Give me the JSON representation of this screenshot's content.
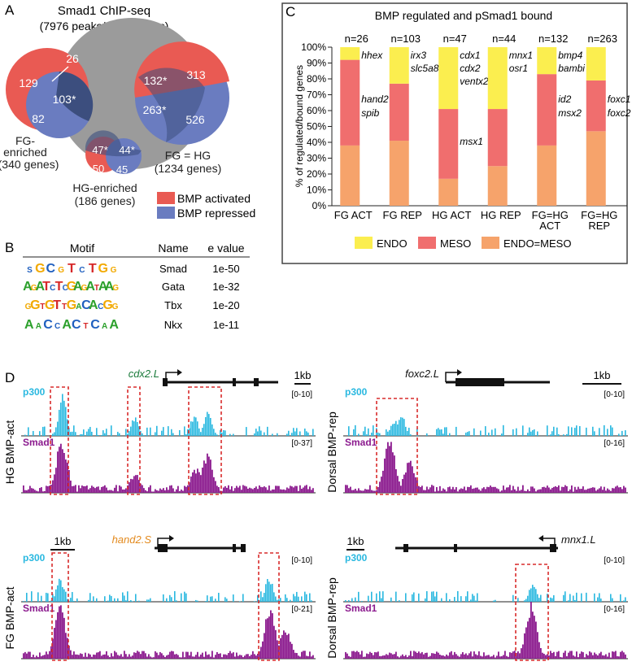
{
  "panelA": {
    "letter": "A",
    "title1": "Smad1 ChIP-seq",
    "title2": "(7976 peaks/5252 genes)",
    "fg": {
      "left": "129",
      "overlap": "103*",
      "bottom": "82",
      "label1": "FG-",
      "label2": "enriched",
      "label3": "(340 genes)",
      "line_label": "26"
    },
    "fghg": {
      "top_overlap": "132*",
      "top": "313",
      "mid_overlap": "263*",
      "bottom": "526",
      "label1": "FG = HG",
      "label2": "(1234 genes)"
    },
    "hg": {
      "tl": "47*",
      "tr": "44*",
      "bl": "50",
      "br": "45",
      "label1": "HG-enriched",
      "label2": "(186 genes)"
    },
    "legend": [
      {
        "label": "BMP activated",
        "color": "#e95a53"
      },
      {
        "label": "BMP repressed",
        "color": "#6a7cc0"
      }
    ],
    "colors": {
      "activated": "#e95a53",
      "repressed": "#6a7cc0",
      "overlap": "#3c4e7e",
      "big": "#999999"
    }
  },
  "panelB": {
    "letter": "B",
    "headers": [
      "Motif",
      "Name",
      "e value"
    ],
    "rows": [
      {
        "motif": "SGCGTCTGG",
        "name": "Smad",
        "evalue": "1e-50"
      },
      {
        "motif": "AGATCTCGAGATAAG",
        "name": "Gata",
        "evalue": "1e-32"
      },
      {
        "motif": "GGTGTTGACACGG",
        "name": "Tbx",
        "evalue": "1e-20"
      },
      {
        "motif": "AACCACTCAA",
        "name": "Nkx",
        "evalue": "1e-11"
      }
    ]
  },
  "panelC": {
    "letter": "C",
    "title": "BMP regulated and pSmad1 bound",
    "ylabel": "% of regulated/bound genes",
    "legend": [
      {
        "label": "ENDO",
        "color": "#fbee4f"
      },
      {
        "label": "MESO",
        "color": "#f06e6e"
      },
      {
        "label": "ENDO=MESO",
        "color": "#f6a36b"
      }
    ],
    "genes": [
      {
        "top": "hhex",
        "mid": "hand2 spib"
      },
      {
        "top": "irx3 slc5a8",
        "mid": ""
      },
      {
        "top": "cdx1 cdx2 ventx2.1",
        "mid": "msx1"
      },
      {
        "top": "mnx1 osr1",
        "mid": ""
      },
      {
        "top": "bmp4 bambi",
        "mid": "id2 msx2"
      },
      {
        "top": "",
        "mid": "foxc1 foxc2"
      }
    ]
  },
  "chart_data": {
    "type": "bar",
    "stacked": true,
    "title": "BMP regulated and pSmad1 bound",
    "ylabel": "% of regulated/bound genes",
    "ylim": [
      0,
      100
    ],
    "yticks": [
      "0%",
      "10%",
      "20%",
      "30%",
      "40%",
      "50%",
      "60%",
      "70%",
      "80%",
      "90%",
      "100%"
    ],
    "categories": [
      "FG ACT",
      "FG REP",
      "HG ACT",
      "HG REP",
      "FG=HG ACT",
      "FG=HG REP"
    ],
    "n_labels": [
      "n=26",
      "n=103",
      "n=47",
      "n=44",
      "n=132",
      "n=263"
    ],
    "series": [
      {
        "name": "ENDO=MESO",
        "color": "#f6a36b",
        "values": [
          38,
          41,
          17,
          25,
          38,
          47
        ]
      },
      {
        "name": "MESO",
        "color": "#f06e6e",
        "values": [
          54,
          36,
          44,
          36,
          45,
          32
        ]
      },
      {
        "name": "ENDO",
        "color": "#fbee4f",
        "values": [
          8,
          23,
          39,
          39,
          17,
          21
        ]
      }
    ]
  },
  "panelD": {
    "letter": "D",
    "scale_label": "1kb",
    "tracks": [
      {
        "gene": "cdx2.L",
        "gene_color": "#1a7a3a",
        "side_label": "HG BMP-act",
        "p300_range": "[0-10]",
        "smad_range": "[0-37]",
        "p300_label": "p300",
        "smad_label": "Smad1"
      },
      {
        "gene": "foxc2.L",
        "gene_color": "#111111",
        "side_label": "Dorsal BMP-rep",
        "p300_range": "[0-10]",
        "smad_range": "[0-16]",
        "p300_label": "p300",
        "smad_label": "Smad1"
      },
      {
        "gene": "hand2.S",
        "gene_color": "#e38a1e",
        "side_label": "FG BMP-act",
        "p300_range": "[0-10]",
        "smad_range": "[0-21]",
        "p300_label": "p300",
        "smad_label": "Smad1"
      },
      {
        "gene": "mnx1.L",
        "gene_color": "#111111",
        "side_label": "Dorsal BMP-rep",
        "p300_range": "[0-10]",
        "smad_range": "[0-16]",
        "p300_label": "p300",
        "smad_label": "Smad1"
      }
    ],
    "colors": {
      "p300": "#29b8e0",
      "smad": "#8b1a8e",
      "box": "#d92b2b"
    }
  }
}
